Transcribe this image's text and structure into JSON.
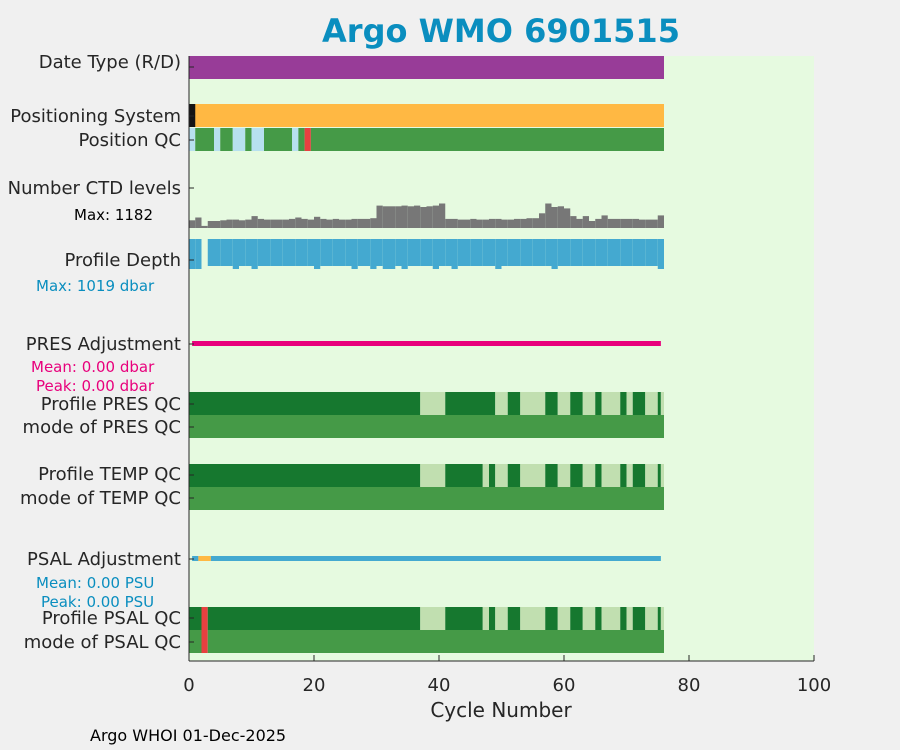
{
  "title": "Argo WMO 6901515",
  "footer": "Argo WHOI 01-Dec-2025",
  "colors": {
    "axes_bg": "#e6fae0",
    "date_type": "#983c98",
    "positioning": "#ffb843",
    "qc_good": "#459a47",
    "qc_dark": "#16782f",
    "qc_light": "#c1dfb0",
    "qc_sky": "#b7e0ef",
    "qc_bad": "#e84040",
    "ctd": "#777777",
    "depth": "#44a9d0",
    "pres_adj": "#e8007c",
    "psal_adj": "#44a9d0",
    "black": "#141414"
  },
  "chart_data": {
    "type": "bar",
    "xlabel": "Cycle Number",
    "xlim": [
      0,
      100
    ],
    "xticks": [
      0,
      20,
      40,
      60,
      80,
      100
    ],
    "n_cycles": 76,
    "rows": {
      "date_type": {
        "label": "Date Type (R/D)"
      },
      "positioning": {
        "label": "Positioning System"
      },
      "position_qc": {
        "label": "Position QC"
      },
      "ctd": {
        "label": "Number CTD levels",
        "max_label": "Max: 1182"
      },
      "depth": {
        "label": "Profile Depth",
        "max_label": "Max: 1019 dbar"
      },
      "pres_adj": {
        "label": "PRES Adjustment",
        "mean_label": "Mean: 0.00 dbar",
        "peak_label": "Peak: 0.00 dbar"
      },
      "profile_pres_qc": {
        "label": "Profile PRES QC"
      },
      "mode_pres_qc": {
        "label": "mode of PRES QC"
      },
      "profile_temp_qc": {
        "label": "Profile TEMP QC"
      },
      "mode_temp_qc": {
        "label": "mode of TEMP QC"
      },
      "psal_adj": {
        "label": "PSAL Adjustment",
        "mean_label": "Mean: 0.00 PSU",
        "peak_label": "Peak: 0.00 PSU"
      },
      "profile_psal_qc": {
        "label": "Profile PSAL QC"
      },
      "mode_psal_qc": {
        "label": "mode of PSAL QC"
      }
    },
    "ctd_levels_relative": [
      0.55,
      0.75,
      0.15,
      0.5,
      0.5,
      0.55,
      0.6,
      0.6,
      0.55,
      0.6,
      0.85,
      0.65,
      0.6,
      0.6,
      0.6,
      0.6,
      0.65,
      0.75,
      0.65,
      0.6,
      0.8,
      0.65,
      0.6,
      0.65,
      0.6,
      0.6,
      0.65,
      0.65,
      0.65,
      0.7,
      1.6,
      1.55,
      1.55,
      1.55,
      1.6,
      1.55,
      1.6,
      1.5,
      1.55,
      1.6,
      1.75,
      0.65,
      0.65,
      0.6,
      0.6,
      0.65,
      0.6,
      0.6,
      0.65,
      0.65,
      0.6,
      0.6,
      0.65,
      0.65,
      0.7,
      0.7,
      1.05,
      1.75,
      1.5,
      1.55,
      1.4,
      0.85,
      0.65,
      0.85,
      0.5,
      0.65,
      0.9,
      0.65,
      0.65,
      0.65,
      0.65,
      0.65,
      0.6,
      0.6,
      0.6,
      0.9
    ],
    "depth_short_cycles": [
      8,
      11,
      21,
      27,
      30,
      32,
      33,
      35,
      40,
      43,
      50,
      59,
      76
    ],
    "depth_gap_cycles": [
      3
    ],
    "position_qc_segments": [
      {
        "from": 0,
        "to": 1,
        "c": "qc_sky"
      },
      {
        "from": 1,
        "to": 4,
        "c": "qc_good"
      },
      {
        "from": 4,
        "to": 5,
        "c": "qc_sky"
      },
      {
        "from": 5,
        "to": 7,
        "c": "qc_good"
      },
      {
        "from": 7,
        "to": 9,
        "c": "qc_sky"
      },
      {
        "from": 9,
        "to": 10,
        "c": "qc_good"
      },
      {
        "from": 10,
        "to": 12,
        "c": "qc_sky"
      },
      {
        "from": 12,
        "to": 16.5,
        "c": "qc_good"
      },
      {
        "from": 16.5,
        "to": 17.5,
        "c": "qc_sky"
      },
      {
        "from": 17.5,
        "to": 18.5,
        "c": "qc_good"
      },
      {
        "from": 18.5,
        "to": 19.5,
        "c": "qc_bad"
      },
      {
        "from": 19.5,
        "to": 76,
        "c": "qc_good"
      }
    ],
    "profile_pres_qc_segments": [
      {
        "from": 0,
        "to": 37,
        "c": "qc_dark"
      },
      {
        "from": 37,
        "to": 41,
        "c": "qc_light"
      },
      {
        "from": 41,
        "to": 49,
        "c": "qc_dark"
      },
      {
        "from": 49,
        "to": 51,
        "c": "qc_light"
      },
      {
        "from": 51,
        "to": 53,
        "c": "qc_dark"
      },
      {
        "from": 53,
        "to": 57,
        "c": "qc_light"
      },
      {
        "from": 57,
        "to": 59,
        "c": "qc_dark"
      },
      {
        "from": 59,
        "to": 61,
        "c": "qc_light"
      },
      {
        "from": 61,
        "to": 63,
        "c": "qc_dark"
      },
      {
        "from": 63,
        "to": 65,
        "c": "qc_light"
      },
      {
        "from": 65,
        "to": 66,
        "c": "qc_dark"
      },
      {
        "from": 66,
        "to": 69,
        "c": "qc_light"
      },
      {
        "from": 69,
        "to": 70,
        "c": "qc_dark"
      },
      {
        "from": 70,
        "to": 71,
        "c": "qc_light"
      },
      {
        "from": 71,
        "to": 73,
        "c": "qc_dark"
      },
      {
        "from": 73,
        "to": 75,
        "c": "qc_light"
      },
      {
        "from": 75,
        "to": 75.5,
        "c": "qc_dark"
      },
      {
        "from": 75.5,
        "to": 76,
        "c": "qc_light"
      }
    ],
    "profile_temp_qc_segments": [
      {
        "from": 0,
        "to": 37,
        "c": "qc_dark"
      },
      {
        "from": 37,
        "to": 41,
        "c": "qc_light"
      },
      {
        "from": 41,
        "to": 47,
        "c": "qc_dark"
      },
      {
        "from": 47,
        "to": 48,
        "c": "qc_light"
      },
      {
        "from": 48,
        "to": 49,
        "c": "qc_dark"
      },
      {
        "from": 49,
        "to": 51,
        "c": "qc_light"
      },
      {
        "from": 51,
        "to": 53,
        "c": "qc_dark"
      },
      {
        "from": 53,
        "to": 57,
        "c": "qc_light"
      },
      {
        "from": 57,
        "to": 59,
        "c": "qc_dark"
      },
      {
        "from": 59,
        "to": 61,
        "c": "qc_light"
      },
      {
        "from": 61,
        "to": 63,
        "c": "qc_dark"
      },
      {
        "from": 63,
        "to": 65,
        "c": "qc_light"
      },
      {
        "from": 65,
        "to": 66,
        "c": "qc_dark"
      },
      {
        "from": 66,
        "to": 69,
        "c": "qc_light"
      },
      {
        "from": 69,
        "to": 70,
        "c": "qc_dark"
      },
      {
        "from": 70,
        "to": 71,
        "c": "qc_light"
      },
      {
        "from": 71,
        "to": 73,
        "c": "qc_dark"
      },
      {
        "from": 73,
        "to": 75,
        "c": "qc_light"
      },
      {
        "from": 75,
        "to": 75.5,
        "c": "qc_dark"
      },
      {
        "from": 75.5,
        "to": 76,
        "c": "qc_light"
      }
    ],
    "profile_psal_qc_segments": [
      {
        "from": 0,
        "to": 2,
        "c": "qc_dark"
      },
      {
        "from": 2,
        "to": 3,
        "c": "qc_bad"
      },
      {
        "from": 3,
        "to": 37,
        "c": "qc_dark"
      },
      {
        "from": 37,
        "to": 41,
        "c": "qc_light"
      },
      {
        "from": 41,
        "to": 47,
        "c": "qc_dark"
      },
      {
        "from": 47,
        "to": 48,
        "c": "qc_light"
      },
      {
        "from": 48,
        "to": 49,
        "c": "qc_dark"
      },
      {
        "from": 49,
        "to": 51,
        "c": "qc_light"
      },
      {
        "from": 51,
        "to": 53,
        "c": "qc_dark"
      },
      {
        "from": 53,
        "to": 57,
        "c": "qc_light"
      },
      {
        "from": 57,
        "to": 59,
        "c": "qc_dark"
      },
      {
        "from": 59,
        "to": 61,
        "c": "qc_light"
      },
      {
        "from": 61,
        "to": 63,
        "c": "qc_dark"
      },
      {
        "from": 63,
        "to": 65,
        "c": "qc_light"
      },
      {
        "from": 65,
        "to": 66,
        "c": "qc_dark"
      },
      {
        "from": 66,
        "to": 69,
        "c": "qc_light"
      },
      {
        "from": 69,
        "to": 70,
        "c": "qc_dark"
      },
      {
        "from": 70,
        "to": 71,
        "c": "qc_light"
      },
      {
        "from": 71,
        "to": 73,
        "c": "qc_dark"
      },
      {
        "from": 73,
        "to": 75,
        "c": "qc_light"
      },
      {
        "from": 75,
        "to": 75.5,
        "c": "qc_dark"
      },
      {
        "from": 75.5,
        "to": 76,
        "c": "qc_light"
      }
    ],
    "mode_psal_qc_segments": [
      {
        "from": 0,
        "to": 2,
        "c": "qc_good"
      },
      {
        "from": 2,
        "to": 3,
        "c": "qc_bad"
      },
      {
        "from": 3,
        "to": 76,
        "c": "qc_good"
      }
    ],
    "psal_adj_segments": [
      {
        "from": 0.5,
        "to": 1.5,
        "c": "psal_adj"
      },
      {
        "from": 1.5,
        "to": 3.5,
        "c": "positioning"
      },
      {
        "from": 3.5,
        "to": 75.5,
        "c": "psal_adj"
      }
    ]
  }
}
